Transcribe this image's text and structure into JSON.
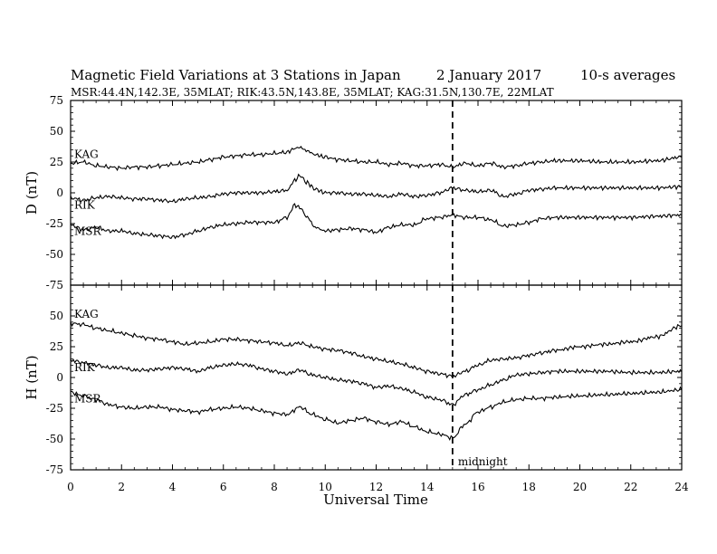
{
  "chart_data": {
    "type": "line",
    "title": "Magnetic Field Variations at 3 Stations in Japan",
    "date": "2   January  2017",
    "averaging": "10-s averages",
    "subtitle": "MSR:44.4N,142.3E, 35MLAT;  RIK:43.5N,143.8E, 35MLAT;  KAG:31.5N,130.7E, 22MLAT",
    "xlabel": "Universal Time",
    "xlim": [
      0,
      24
    ],
    "x_ticks": [
      "0",
      "2",
      "4",
      "6",
      "8",
      "10",
      "12",
      "14",
      "16",
      "18",
      "20",
      "22",
      "24"
    ],
    "annotation": {
      "x": 15,
      "label": "midnight"
    },
    "panels": [
      {
        "ylabel": "D (nT)",
        "ylim": [
          -75,
          75
        ],
        "y_ticks": [
          "75",
          "50",
          "25",
          "0",
          "-25",
          "-50",
          "-75"
        ],
        "series": [
          {
            "name": "KAG",
            "x": [
              0,
              0.5,
              1,
              1.5,
              2,
              2.5,
              3,
              3.5,
              4,
              4.5,
              5,
              5.5,
              6,
              6.5,
              7,
              7.5,
              8,
              8.5,
              8.8,
              9,
              9.3,
              9.6,
              10,
              10.5,
              11,
              11.5,
              12,
              12.5,
              13,
              13.5,
              14,
              14.5,
              15,
              15.5,
              16,
              16.5,
              17,
              17.5,
              18,
              18.5,
              19,
              20,
              21,
              22,
              23,
              24
            ],
            "y": [
              24,
              25,
              22,
              21,
              20,
              21,
              21,
              22,
              23,
              24,
              25,
              27,
              29,
              30,
              31,
              31,
              32,
              33,
              36,
              37,
              34,
              31,
              29,
              27,
              26,
              25,
              25,
              23,
              24,
              22,
              22,
              23,
              21,
              24,
              22,
              24,
              21,
              22,
              24,
              25,
              26,
              26,
              25,
              25,
              26,
              29
            ]
          },
          {
            "name": "RIK",
            "x": [
              0,
              0.5,
              1,
              1.5,
              2,
              2.5,
              3,
              3.5,
              4,
              4.5,
              5,
              5.5,
              6,
              6.5,
              7,
              7.5,
              8,
              8.5,
              8.8,
              9,
              9.3,
              9.6,
              10,
              10.5,
              11,
              11.5,
              12,
              12.5,
              13,
              13.5,
              14,
              14.5,
              15,
              15.5,
              16,
              16.5,
              17,
              17.5,
              18,
              18.5,
              19,
              20,
              21,
              22,
              23,
              24
            ],
            "y": [
              -4,
              -6,
              -4,
              -3,
              -4,
              -5,
              -5,
              -6,
              -7,
              -5,
              -4,
              -3,
              -1,
              0,
              0,
              0,
              1,
              2,
              10,
              14,
              8,
              3,
              0,
              0,
              -1,
              -1,
              -2,
              -3,
              -1,
              -3,
              -2,
              0,
              4,
              2,
              1,
              2,
              -3,
              -1,
              2,
              3,
              4,
              4,
              4,
              4,
              4,
              5
            ]
          },
          {
            "name": "MSR",
            "x": [
              0,
              0.5,
              1,
              1.5,
              2,
              2.5,
              3,
              3.5,
              4,
              4.5,
              5,
              5.5,
              6,
              6.5,
              7,
              7.5,
              8,
              8.5,
              8.8,
              9,
              9.3,
              9.6,
              10,
              10.5,
              11,
              11.5,
              12,
              12.5,
              13,
              13.5,
              14,
              14.5,
              15,
              15.5,
              16,
              16.5,
              17,
              17.5,
              18,
              18.5,
              19,
              20,
              21,
              22,
              23,
              24
            ],
            "y": [
              -26,
              -30,
              -28,
              -31,
              -31,
              -33,
              -34,
              -35,
              -36,
              -34,
              -31,
              -28,
              -26,
              -25,
              -24,
              -24,
              -24,
              -20,
              -10,
              -12,
              -20,
              -28,
              -31,
              -30,
              -29,
              -30,
              -32,
              -28,
              -26,
              -26,
              -21,
              -20,
              -18,
              -20,
              -20,
              -22,
              -27,
              -26,
              -24,
              -21,
              -20,
              -20,
              -20,
              -20,
              -19,
              -18
            ]
          }
        ]
      },
      {
        "ylabel": "H (nT)",
        "ylim": [
          -75,
          75
        ],
        "y_ticks": [
          "75",
          "50",
          "25",
          "0",
          "-25",
          "-50",
          "-75"
        ],
        "series": [
          {
            "name": "KAG",
            "x": [
              0,
              0.5,
              1,
              1.5,
              2,
              2.5,
              3,
              3.5,
              4,
              4.5,
              5,
              5.5,
              6,
              6.5,
              7,
              7.5,
              8,
              8.5,
              9,
              9.5,
              10,
              10.5,
              11,
              11.5,
              12,
              12.5,
              13,
              13.5,
              14,
              14.5,
              15,
              15.5,
              16,
              16.5,
              17,
              17.5,
              18,
              18.5,
              19,
              20,
              21,
              22,
              23,
              24
            ],
            "y": [
              44,
              43,
              40,
              38,
              36,
              34,
              32,
              31,
              29,
              27,
              28,
              29,
              31,
              31,
              30,
              29,
              28,
              26,
              28,
              25,
              23,
              22,
              20,
              17,
              15,
              13,
              11,
              8,
              5,
              3,
              1,
              5,
              10,
              14,
              15,
              16,
              18,
              20,
              22,
              25,
              27,
              29,
              33,
              42
            ]
          },
          {
            "name": "RIK",
            "x": [
              0,
              0.5,
              1,
              1.5,
              2,
              2.5,
              3,
              3.5,
              4,
              4.5,
              5,
              5.5,
              6,
              6.5,
              7,
              7.5,
              8,
              8.5,
              9,
              9.5,
              10,
              10.5,
              11,
              11.5,
              12,
              12.5,
              13,
              13.5,
              14,
              14.5,
              15,
              15.5,
              16,
              16.5,
              17,
              17.5,
              18,
              18.5,
              19,
              20,
              21,
              22,
              23,
              24
            ],
            "y": [
              14,
              12,
              10,
              8,
              8,
              6,
              6,
              7,
              8,
              7,
              5,
              8,
              10,
              11,
              10,
              7,
              5,
              3,
              6,
              2,
              0,
              -2,
              -3,
              -5,
              -8,
              -7,
              -9,
              -12,
              -16,
              -18,
              -22,
              -14,
              -10,
              -6,
              -2,
              2,
              3,
              4,
              5,
              5,
              5,
              4,
              4,
              5
            ]
          },
          {
            "name": "MSR",
            "x": [
              0,
              0.5,
              1,
              1.5,
              2,
              2.5,
              3,
              3.5,
              4,
              4.5,
              5,
              5.5,
              6,
              6.5,
              7,
              7.5,
              8,
              8.5,
              9,
              9.5,
              10,
              10.5,
              11,
              11.5,
              12,
              12.5,
              13,
              13.5,
              14,
              14.5,
              15,
              15.5,
              16,
              16.5,
              17,
              17.5,
              18,
              18.5,
              19,
              20,
              21,
              22,
              23,
              24
            ],
            "y": [
              -12,
              -15,
              -18,
              -22,
              -24,
              -25,
              -24,
              -24,
              -26,
              -27,
              -28,
              -26,
              -25,
              -24,
              -25,
              -27,
              -29,
              -30,
              -24,
              -30,
              -34,
              -37,
              -35,
              -33,
              -36,
              -38,
              -36,
              -40,
              -44,
              -46,
              -49,
              -38,
              -28,
              -24,
              -20,
              -18,
              -17,
              -17,
              -16,
              -15,
              -14,
              -13,
              -12,
              -10
            ]
          }
        ]
      }
    ]
  }
}
